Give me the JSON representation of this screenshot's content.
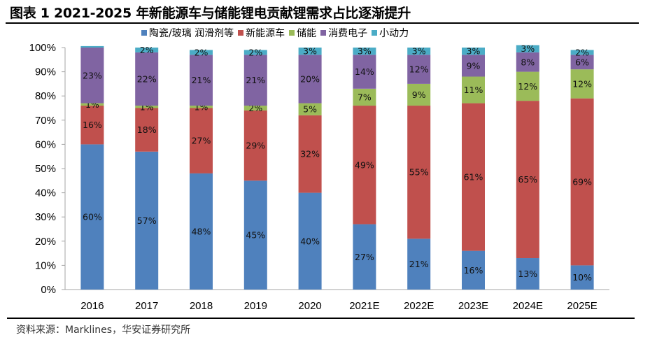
{
  "title": "图表 1 2021-2025 年新能源车与储能锂电贡献锂需求占比逐渐提升",
  "source": "资料来源：Marklines，华安证券研究所",
  "chart_data": {
    "type": "bar",
    "stacked": true,
    "title": "图表 1 2021-2025 年新能源车与储能锂电贡献锂需求占比逐渐提升",
    "xlabel": "",
    "ylabel": "",
    "ylim": [
      0,
      100
    ],
    "yticks": [
      "0%",
      "10%",
      "20%",
      "30%",
      "40%",
      "50%",
      "60%",
      "70%",
      "80%",
      "90%",
      "100%"
    ],
    "grid": false,
    "legend_position": "top-center",
    "categories": [
      "2016",
      "2017",
      "2018",
      "2019",
      "2020",
      "2021E",
      "2022E",
      "2023E",
      "2024E",
      "2025E"
    ],
    "series": [
      {
        "name": "陶瓷/玻璃 润滑剂等",
        "color": "#4F81BD",
        "values": [
          60,
          57,
          48,
          45,
          40,
          27,
          21,
          16,
          13,
          10
        ],
        "labels": [
          "60%",
          "57%",
          "48%",
          "45%",
          "40%",
          "27%",
          "21%",
          "16%",
          "13%",
          "10%"
        ]
      },
      {
        "name": "新能源车",
        "color": "#C0504D",
        "values": [
          16,
          18,
          27,
          29,
          32,
          49,
          55,
          61,
          65,
          69
        ],
        "labels": [
          "16%",
          "18%",
          "27%",
          "29%",
          "32%",
          "49%",
          "55%",
          "61%",
          "65%",
          "69%"
        ]
      },
      {
        "name": "储能",
        "color": "#9BBB59",
        "values": [
          1,
          1,
          1,
          2,
          5,
          7,
          9,
          11,
          12,
          12
        ],
        "labels": [
          "1%",
          "1%",
          "1%",
          "2%",
          "5%",
          "7%",
          "9%",
          "11%",
          "12%",
          "12%"
        ]
      },
      {
        "name": "消费电子",
        "color": "#8064A2",
        "values": [
          23,
          22,
          21,
          21,
          20,
          14,
          12,
          9,
          8,
          6
        ],
        "labels": [
          "23%",
          "22%",
          "21%",
          "21%",
          "20%",
          "14%",
          "12%",
          "9%",
          "8%",
          "6%"
        ]
      },
      {
        "name": "小动力",
        "color": "#4BACC6",
        "values": [
          0.6,
          2,
          2,
          2,
          3,
          3,
          3,
          3,
          3,
          2
        ],
        "labels": [
          "",
          "2%",
          "2%",
          "2%",
          "3%",
          "3%",
          "3%",
          "3%",
          "3%",
          "2%"
        ]
      }
    ]
  }
}
